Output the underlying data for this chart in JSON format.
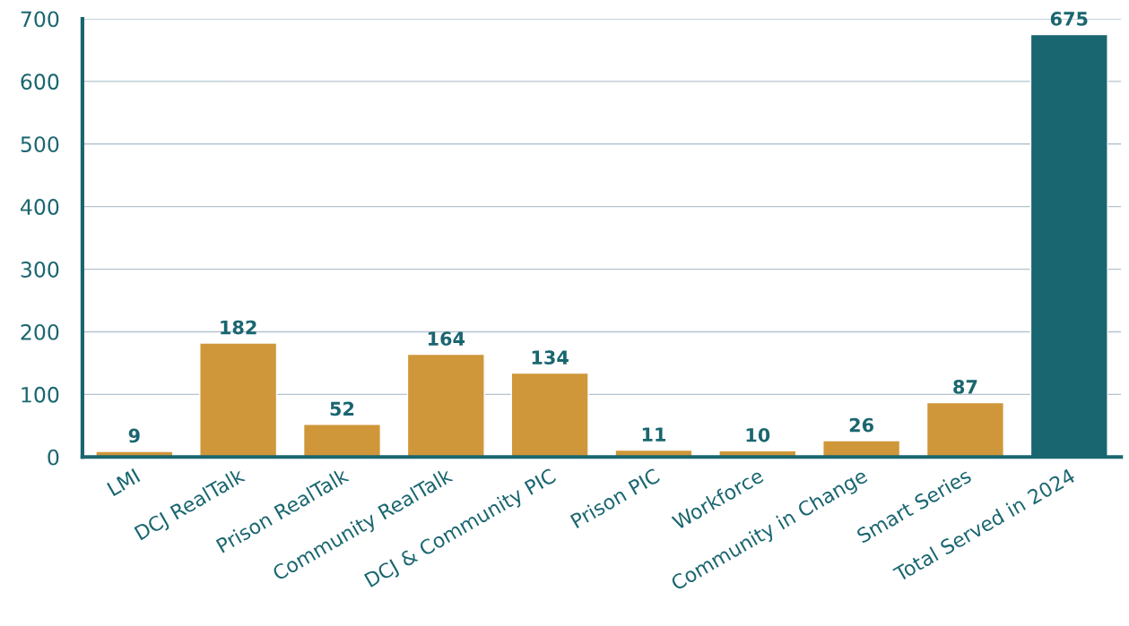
{
  "chart_data": {
    "type": "bar",
    "categories": [
      "LMI",
      "DCJ RealTalk",
      "Prison RealTalk",
      "Community RealTalk",
      "DCJ & Community PIC",
      "Prison PIC",
      "Workforce",
      "Community in Change",
      "Smart Series",
      "Total Served in 2024"
    ],
    "values": [
      9,
      182,
      52,
      164,
      134,
      11,
      10,
      26,
      87,
      675
    ],
    "colors": [
      "#cf973a",
      "#cf973a",
      "#cf973a",
      "#cf973a",
      "#cf973a",
      "#cf973a",
      "#cf973a",
      "#cf973a",
      "#cf973a",
      "#1a6670"
    ],
    "ylim": [
      0,
      700
    ],
    "yticks": [
      0,
      100,
      200,
      300,
      400,
      500,
      600,
      700
    ],
    "grid": "y",
    "data_labels": true
  }
}
